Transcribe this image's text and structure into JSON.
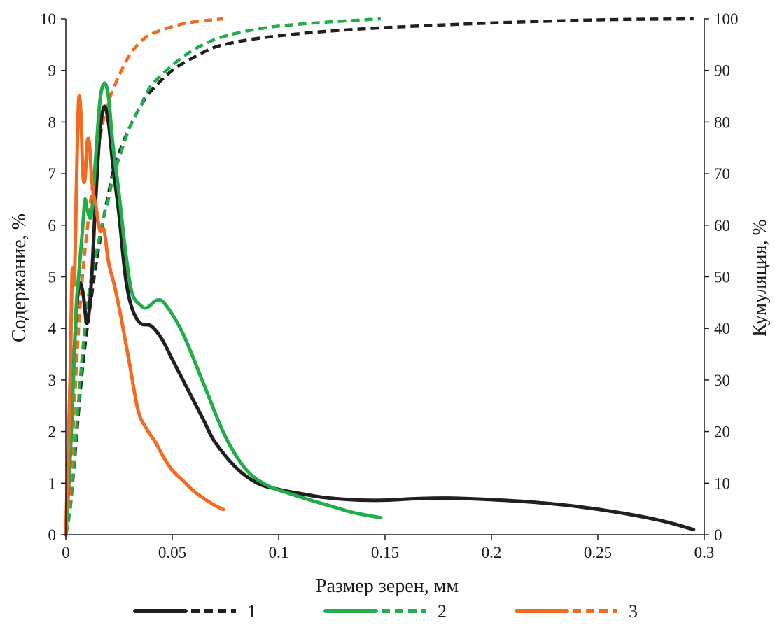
{
  "chart_data": {
    "type": "line",
    "xlabel": "Размер зерен, мм",
    "ylabel": "Содержание, %",
    "y2label": "Кумуляция, %",
    "xlim": [
      0,
      0.3
    ],
    "ylim": [
      0,
      10
    ],
    "y2lim": [
      0,
      100
    ],
    "x_ticks": [
      {
        "value": 0,
        "label": "0"
      },
      {
        "value": 0.05,
        "label": "0.05"
      },
      {
        "value": 0.1,
        "label": "0.1"
      },
      {
        "value": 0.15,
        "label": "0.15"
      },
      {
        "value": 0.2,
        "label": "0.2"
      },
      {
        "value": 0.25,
        "label": "0.25"
      },
      {
        "value": 0.3,
        "label": "0.3"
      }
    ],
    "y_ticks": [
      {
        "value": 0,
        "label": "0"
      },
      {
        "value": 1,
        "label": "1"
      },
      {
        "value": 2,
        "label": "2"
      },
      {
        "value": 3,
        "label": "3"
      },
      {
        "value": 4,
        "label": "4"
      },
      {
        "value": 5,
        "label": "5"
      },
      {
        "value": 6,
        "label": "6"
      },
      {
        "value": 7,
        "label": "7"
      },
      {
        "value": 8,
        "label": "8"
      },
      {
        "value": 9,
        "label": "9"
      },
      {
        "value": 10,
        "label": "10"
      }
    ],
    "y2_ticks": [
      {
        "value": 0,
        "label": "0"
      },
      {
        "value": 10,
        "label": "10"
      },
      {
        "value": 20,
        "label": "20"
      },
      {
        "value": 30,
        "label": "30"
      },
      {
        "value": 40,
        "label": "40"
      },
      {
        "value": 50,
        "label": "50"
      },
      {
        "value": 60,
        "label": "60"
      },
      {
        "value": 70,
        "label": "70"
      },
      {
        "value": 80,
        "label": "80"
      },
      {
        "value": 90,
        "label": "90"
      },
      {
        "value": 100,
        "label": "100"
      }
    ],
    "grid": false,
    "legend_position": "bottom",
    "series": [
      {
        "name": "1",
        "color": "#231f20",
        "content": [
          [
            0,
            0
          ],
          [
            0.002,
            1.5
          ],
          [
            0.004,
            3.6
          ],
          [
            0.006,
            4.8
          ],
          [
            0.008,
            4.7
          ],
          [
            0.01,
            4.1
          ],
          [
            0.012,
            4.9
          ],
          [
            0.014,
            6.5
          ],
          [
            0.016,
            7.8
          ],
          [
            0.018,
            8.3
          ],
          [
            0.02,
            8.0
          ],
          [
            0.022,
            7.2
          ],
          [
            0.025,
            6.2
          ],
          [
            0.028,
            5.0
          ],
          [
            0.031,
            4.4
          ],
          [
            0.035,
            4.1
          ],
          [
            0.04,
            4.05
          ],
          [
            0.045,
            3.8
          ],
          [
            0.05,
            3.4
          ],
          [
            0.055,
            3.0
          ],
          [
            0.06,
            2.6
          ],
          [
            0.065,
            2.2
          ],
          [
            0.07,
            1.8
          ],
          [
            0.08,
            1.3
          ],
          [
            0.09,
            1.0
          ],
          [
            0.1,
            0.88
          ],
          [
            0.11,
            0.8
          ],
          [
            0.12,
            0.73
          ],
          [
            0.13,
            0.69
          ],
          [
            0.14,
            0.67
          ],
          [
            0.15,
            0.67
          ],
          [
            0.165,
            0.7
          ],
          [
            0.18,
            0.71
          ],
          [
            0.2,
            0.68
          ],
          [
            0.22,
            0.63
          ],
          [
            0.24,
            0.55
          ],
          [
            0.26,
            0.43
          ],
          [
            0.28,
            0.27
          ],
          [
            0.295,
            0.1
          ]
        ],
        "cumulative": [
          [
            0,
            0
          ],
          [
            0.002,
            5
          ],
          [
            0.004,
            14
          ],
          [
            0.006,
            24
          ],
          [
            0.008,
            33
          ],
          [
            0.01,
            40
          ],
          [
            0.012,
            46
          ],
          [
            0.014,
            52
          ],
          [
            0.016,
            57
          ],
          [
            0.018,
            62
          ],
          [
            0.02,
            66
          ],
          [
            0.022,
            70
          ],
          [
            0.025,
            74
          ],
          [
            0.03,
            79
          ],
          [
            0.035,
            83
          ],
          [
            0.04,
            86
          ],
          [
            0.05,
            90
          ],
          [
            0.06,
            92.5
          ],
          [
            0.07,
            94.5
          ],
          [
            0.08,
            95.5
          ],
          [
            0.09,
            96.2
          ],
          [
            0.1,
            96.7
          ],
          [
            0.12,
            97.5
          ],
          [
            0.15,
            98.3
          ],
          [
            0.2,
            99.2
          ],
          [
            0.25,
            99.8
          ],
          [
            0.295,
            100
          ]
        ]
      },
      {
        "name": "2",
        "color": "#22ad4b",
        "content": [
          [
            0,
            0
          ],
          [
            0.002,
            1.5
          ],
          [
            0.004,
            3.5
          ],
          [
            0.005,
            4.5
          ],
          [
            0.006,
            5.0
          ],
          [
            0.008,
            6.0
          ],
          [
            0.009,
            6.5
          ],
          [
            0.01,
            6.3
          ],
          [
            0.012,
            6.2
          ],
          [
            0.014,
            7.3
          ],
          [
            0.016,
            8.4
          ],
          [
            0.018,
            8.75
          ],
          [
            0.02,
            8.5
          ],
          [
            0.022,
            7.6
          ],
          [
            0.025,
            6.6
          ],
          [
            0.028,
            5.5
          ],
          [
            0.031,
            4.7
          ],
          [
            0.035,
            4.45
          ],
          [
            0.038,
            4.4
          ],
          [
            0.043,
            4.55
          ],
          [
            0.047,
            4.45
          ],
          [
            0.055,
            3.9
          ],
          [
            0.065,
            2.9
          ],
          [
            0.075,
            1.9
          ],
          [
            0.085,
            1.25
          ],
          [
            0.095,
            0.95
          ],
          [
            0.105,
            0.8
          ],
          [
            0.115,
            0.67
          ],
          [
            0.125,
            0.55
          ],
          [
            0.135,
            0.43
          ],
          [
            0.148,
            0.33
          ]
        ],
        "cumulative": [
          [
            0,
            0
          ],
          [
            0.002,
            5
          ],
          [
            0.004,
            15
          ],
          [
            0.006,
            26
          ],
          [
            0.008,
            36
          ],
          [
            0.01,
            44
          ],
          [
            0.012,
            50
          ],
          [
            0.014,
            54
          ],
          [
            0.016,
            58
          ],
          [
            0.018,
            62
          ],
          [
            0.02,
            65
          ],
          [
            0.022,
            69
          ],
          [
            0.025,
            73
          ],
          [
            0.03,
            79
          ],
          [
            0.035,
            83
          ],
          [
            0.04,
            87
          ],
          [
            0.05,
            91
          ],
          [
            0.06,
            94
          ],
          [
            0.07,
            96
          ],
          [
            0.08,
            97.2
          ],
          [
            0.09,
            98
          ],
          [
            0.1,
            98.6
          ],
          [
            0.12,
            99.3
          ],
          [
            0.148,
            100
          ]
        ]
      },
      {
        "name": "3",
        "color": "#f26b21",
        "content": [
          [
            0,
            0
          ],
          [
            0.001,
            1.5
          ],
          [
            0.002,
            3.0
          ],
          [
            0.003,
            5.1
          ],
          [
            0.004,
            4.9
          ],
          [
            0.005,
            6.8
          ],
          [
            0.006,
            8.4
          ],
          [
            0.007,
            8.2
          ],
          [
            0.008,
            7.0
          ],
          [
            0.009,
            6.9
          ],
          [
            0.01,
            7.6
          ],
          [
            0.011,
            7.6
          ],
          [
            0.012,
            7.0
          ],
          [
            0.013,
            6.6
          ],
          [
            0.014,
            6.4
          ],
          [
            0.016,
            5.9
          ],
          [
            0.018,
            5.9
          ],
          [
            0.02,
            5.3
          ],
          [
            0.023,
            4.8
          ],
          [
            0.026,
            4.2
          ],
          [
            0.03,
            3.3
          ],
          [
            0.034,
            2.4
          ],
          [
            0.038,
            2.05
          ],
          [
            0.042,
            1.8
          ],
          [
            0.046,
            1.5
          ],
          [
            0.05,
            1.25
          ],
          [
            0.055,
            1.05
          ],
          [
            0.06,
            0.85
          ],
          [
            0.065,
            0.7
          ],
          [
            0.07,
            0.57
          ],
          [
            0.074,
            0.49
          ]
        ],
        "cumulative": [
          [
            0,
            0
          ],
          [
            0.002,
            10
          ],
          [
            0.004,
            25
          ],
          [
            0.006,
            40
          ],
          [
            0.008,
            51
          ],
          [
            0.01,
            59
          ],
          [
            0.012,
            66
          ],
          [
            0.014,
            72
          ],
          [
            0.016,
            77
          ],
          [
            0.018,
            81
          ],
          [
            0.02,
            84
          ],
          [
            0.025,
            89
          ],
          [
            0.03,
            93
          ],
          [
            0.035,
            95.5
          ],
          [
            0.04,
            97
          ],
          [
            0.05,
            98.5
          ],
          [
            0.06,
            99.4
          ],
          [
            0.074,
            100
          ]
        ]
      }
    ]
  }
}
